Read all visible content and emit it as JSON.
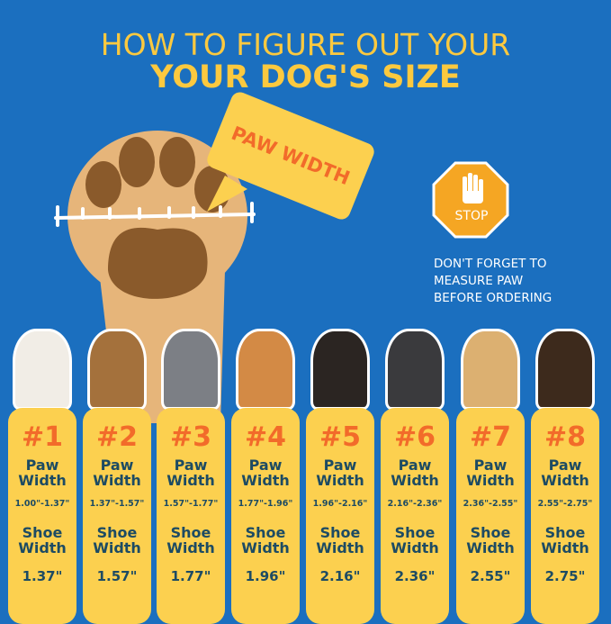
{
  "title": {
    "line1": "HOW TO FIGURE OUT YOUR",
    "line2": "YOUR DOG'S SIZE"
  },
  "bubble": "PAW WIDTH",
  "stop": {
    "label": "STOP",
    "icon": "hand-icon"
  },
  "note": [
    "DON'T FORGET TO",
    "MEASURE PAW",
    "BEFORE ORDERING"
  ],
  "colors": {
    "background": "#1b6fbf",
    "card": "#fcd04f",
    "accent": "#f26b2a",
    "text": "#1d4b63"
  },
  "sizes": [
    {
      "num": "#1",
      "paw_label": "Paw",
      "paw_label2": "Width",
      "paw": "1.00\"-1.37\"",
      "shoe_label": "Shoe",
      "shoe_label2": "Width",
      "shoe": "1.37\""
    },
    {
      "num": "#2",
      "paw_label": "Paw",
      "paw_label2": "Width",
      "paw": "1.37\"-1.57\"",
      "shoe_label": "Shoe",
      "shoe_label2": "Width",
      "shoe": "1.57\""
    },
    {
      "num": "#3",
      "paw_label": "Paw",
      "paw_label2": "Width",
      "paw": "1.57\"-1.77\"",
      "shoe_label": "Shoe",
      "shoe_label2": "Width",
      "shoe": "1.77\""
    },
    {
      "num": "#4",
      "paw_label": "Paw",
      "paw_label2": "Width",
      "paw": "1.77\"-1.96\"",
      "shoe_label": "Shoe",
      "shoe_label2": "Width",
      "shoe": "1.96\""
    },
    {
      "num": "#5",
      "paw_label": "Paw",
      "paw_label2": "Width",
      "paw": "1.96\"-2.16\"",
      "shoe_label": "Shoe",
      "shoe_label2": "Width",
      "shoe": "2.16\""
    },
    {
      "num": "#6",
      "paw_label": "Paw",
      "paw_label2": "Width",
      "paw": "2.16\"-2.36\"",
      "shoe_label": "Shoe",
      "shoe_label2": "Width",
      "shoe": "2.36\""
    },
    {
      "num": "#7",
      "paw_label": "Paw",
      "paw_label2": "Width",
      "paw": "2.36\"-2.55\"",
      "shoe_label": "Shoe",
      "shoe_label2": "Width",
      "shoe": "2.55\""
    },
    {
      "num": "#8",
      "paw_label": "Paw",
      "paw_label2": "Width",
      "paw": "2.55\"-2.75\"",
      "shoe_label": "Shoe",
      "shoe_label2": "Width",
      "shoe": "2.75\""
    }
  ]
}
